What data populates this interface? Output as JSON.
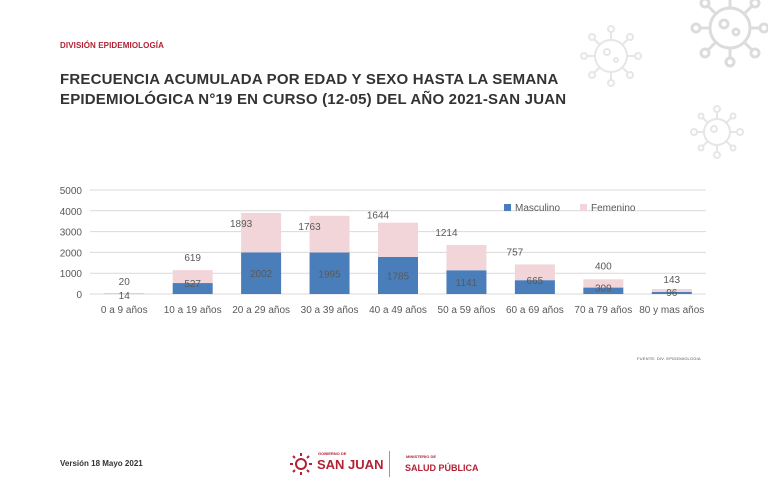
{
  "header": {
    "division": "DIVISIÓN EPIDEMIOLOGÍA",
    "title": "FRECUENCIA ACUMULADA POR EDAD Y SEXO HASTA LA SEMANA EPIDEMIOLÓGICA N°19 EN CURSO (12-05) DEL AÑO 2021-SAN JUAN"
  },
  "chart_data": {
    "type": "bar",
    "stacked": true,
    "categories": [
      "0 a 9 años",
      "10 a 19 años",
      "20 a 29 años",
      "30 a 39 años",
      "40 a 49 años",
      "50 a 59 años",
      "60 a 69 años",
      "70 a 79 años",
      "80 y mas años"
    ],
    "series": [
      {
        "name": "Masculino",
        "values": [
          14,
          527,
          2002,
          1995,
          1785,
          1141,
          665,
          309,
          96
        ],
        "color": "#4a7ebb"
      },
      {
        "name": "Femenino",
        "values": [
          20,
          619,
          1893,
          1763,
          1644,
          1214,
          757,
          400,
          143
        ],
        "color": "#f2d5d8"
      }
    ],
    "yticks": [
      "0",
      "1000",
      "2000",
      "3000",
      "4000",
      "5000"
    ],
    "ylim": [
      0,
      5000
    ],
    "grid": true,
    "legend_position": "top-right"
  },
  "footer": {
    "source": "FUENTE: DIV. EPIDEMIOLOGIA",
    "version": "Versión 18 Mayo 2021",
    "logo_gobierno_small": "GOBIERNO DE",
    "logo_gobierno_big": "SAN JUAN",
    "logo_ministerio_small": "MINISTERIO DE",
    "logo_ministerio_big": "SALUD PÚBLICA"
  },
  "colors": {
    "accent": "#b22234",
    "masculino": "#4a7ebb",
    "femenino": "#f2d5d8"
  }
}
